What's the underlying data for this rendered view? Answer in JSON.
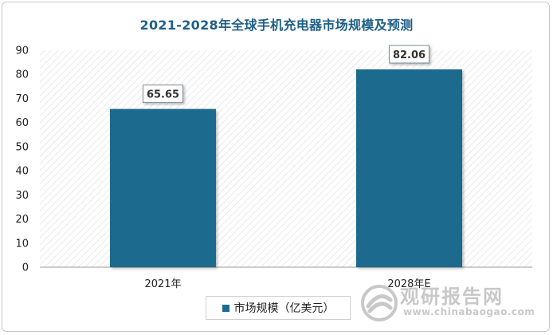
{
  "chart_data": {
    "type": "bar",
    "title": "2021-2028年全球手机充电器市场规模及预测",
    "categories": [
      "2021年",
      "2028年E"
    ],
    "series": [
      {
        "name": "市场规模（亿美元）",
        "values": [
          65.65,
          82.06
        ]
      }
    ],
    "data_labels": [
      "65.65",
      "82.06"
    ],
    "ylim": [
      0,
      90
    ],
    "yticks": [
      0,
      10,
      20,
      30,
      40,
      50,
      60,
      70,
      80,
      90
    ],
    "xlabel": "",
    "ylabel": "",
    "grid": false,
    "legend_position": "bottom",
    "colors": {
      "bar": "#1d6a8e",
      "title": "#1f5f86",
      "plot_hatch": "#d9d9d9"
    }
  },
  "watermark": {
    "text_cn": "观研报告网",
    "text_en": "www.chinabaogao.com"
  }
}
